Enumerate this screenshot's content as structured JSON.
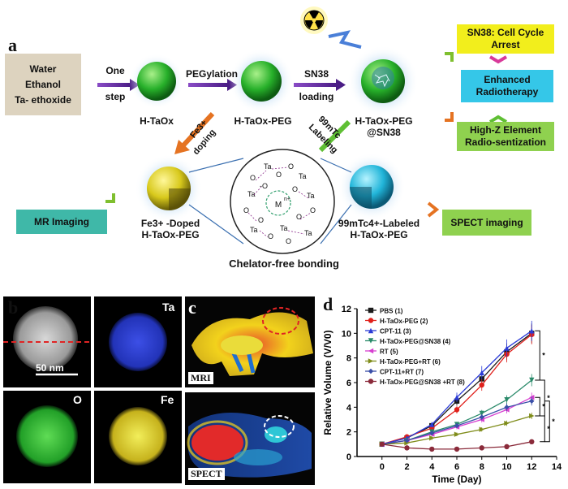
{
  "panel_a": {
    "letter": "a",
    "precursors": [
      "Water",
      "Ethanol",
      "Ta- ethoxide"
    ],
    "step1": [
      "One",
      "step"
    ],
    "step2": "PEGylation",
    "step3": [
      "SN38",
      "loading"
    ],
    "node1": "H-TaOx",
    "node2": "H-TaOx-PEG",
    "node3": [
      "H-TaOx-PEG",
      "@SN38"
    ],
    "fe_doping": [
      "Fe3+",
      "doping"
    ],
    "tc_labeling": [
      "99mTc",
      "Labeling"
    ],
    "fe_label": [
      "Fe3+ -Doped",
      "H-TaOx-PEG"
    ],
    "tc_label": [
      "99mTc4+-Labeled",
      "H-TaOx-PEG"
    ],
    "chelator": "Chelator-free bonding",
    "mr": "MR Imaging",
    "spect": "SPECT imaging",
    "box_cell": [
      "SN38: Cell Cycle",
      "Arrest"
    ],
    "box_radio": [
      "Enhanced",
      "Radiotherapy"
    ],
    "box_highz": [
      "High-Z Element",
      "Radio-sentization"
    ],
    "colors": {
      "yellow_box": "#f2ee1c",
      "cyan_box": "#35c7e8",
      "green_box": "#8fd14f",
      "mr_box": "#3fb8a8",
      "precursor_box": "#ddd3bf"
    }
  },
  "panel_b": {
    "letter": "b",
    "scale": "50 nm",
    "ta": "Ta",
    "o": "O",
    "fe": "Fe"
  },
  "panel_c": {
    "letter": "c",
    "mri": "MRI",
    "spect": "SPECT"
  },
  "chart_data": {
    "type": "line",
    "letter": "d",
    "xlabel": "Time (Day)",
    "ylabel": "Relative Volume (V/V0)",
    "xlim": [
      -2,
      14
    ],
    "ylim": [
      0,
      12
    ],
    "xticks": [
      0,
      2,
      4,
      6,
      8,
      10,
      12,
      14
    ],
    "yticks": [
      0,
      2,
      4,
      6,
      8,
      10,
      12
    ],
    "x": [
      0,
      2,
      4,
      6,
      8,
      10,
      12
    ],
    "series": [
      {
        "name": "PBS (1)",
        "color": "#1a1a1a",
        "marker": "square",
        "values": [
          1,
          1.5,
          2.5,
          4.5,
          6.3,
          8.5,
          10.0
        ]
      },
      {
        "name": "H-TaOx-PEG (2)",
        "color": "#e0201b",
        "marker": "circle",
        "values": [
          1,
          1.6,
          2.3,
          3.8,
          5.8,
          8.3,
          9.9
        ]
      },
      {
        "name": "CPT-11 (3)",
        "color": "#2b3bd6",
        "marker": "triangle",
        "values": [
          1,
          1.5,
          2.6,
          4.8,
          6.8,
          8.8,
          10.2
        ]
      },
      {
        "name": "H-TaOx-PEG@SN38 (4)",
        "color": "#2a8a6a",
        "marker": "triangle-down",
        "values": [
          1,
          1.3,
          2.0,
          2.6,
          3.5,
          4.6,
          6.2
        ]
      },
      {
        "name": "RT (5)",
        "color": "#d73fd0",
        "marker": "triangle-left",
        "values": [
          1,
          1.3,
          1.8,
          2.4,
          3.0,
          3.8,
          4.8
        ]
      },
      {
        "name": "H-TaOx-PEG+RT (6)",
        "color": "#7f8c1a",
        "marker": "triangle-right",
        "values": [
          1,
          1.1,
          1.5,
          1.8,
          2.2,
          2.7,
          3.3
        ]
      },
      {
        "name": "CPT-11+RT (7)",
        "color": "#3a4fa8",
        "marker": "diamond",
        "values": [
          1,
          1.3,
          1.9,
          2.5,
          3.2,
          4.0,
          4.5
        ]
      },
      {
        "name": "H-TaOx-PEG@SN38 +RT (8)",
        "color": "#8a2a3a",
        "marker": "hexagon",
        "values": [
          1,
          0.7,
          0.6,
          0.6,
          0.7,
          0.8,
          1.2
        ]
      }
    ],
    "significance": [
      "*",
      "*",
      "*",
      "*",
      "*"
    ]
  }
}
